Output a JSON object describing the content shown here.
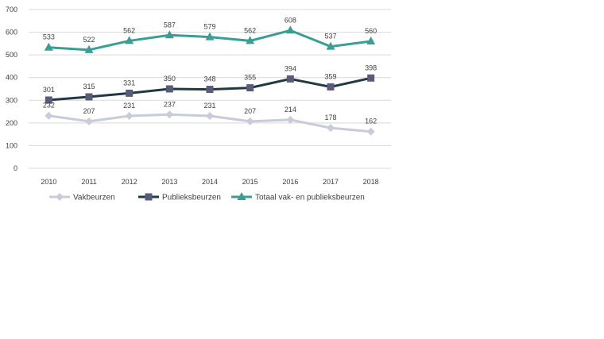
{
  "chart_data": {
    "type": "line",
    "title": "",
    "xlabel": "",
    "ylabel": "",
    "ylim": [
      0,
      700
    ],
    "yticks": [
      0,
      100,
      200,
      300,
      400,
      500,
      600,
      700
    ],
    "grid": true,
    "legend_position": "bottom",
    "categories": [
      "2010",
      "2011",
      "2012",
      "2013",
      "2014",
      "2015",
      "2016",
      "2017",
      "2018"
    ],
    "series": [
      {
        "name": "Vakbeurzen",
        "marker": "diamond",
        "color": "#c8cbd9",
        "values": [
          232,
          207,
          231,
          237,
          231,
          207,
          214,
          178,
          162
        ]
      },
      {
        "name": "Publieksbeurzen",
        "marker": "square",
        "color": "#1f3a45",
        "marker_color": "#5a5a7a",
        "values": [
          301,
          315,
          331,
          350,
          348,
          355,
          394,
          359,
          398
        ]
      },
      {
        "name": "Totaal vak- en publieksbeurzen",
        "marker": "triangle",
        "color": "#3a9e94",
        "values": [
          533,
          522,
          562,
          587,
          579,
          562,
          608,
          537,
          560
        ]
      }
    ]
  }
}
